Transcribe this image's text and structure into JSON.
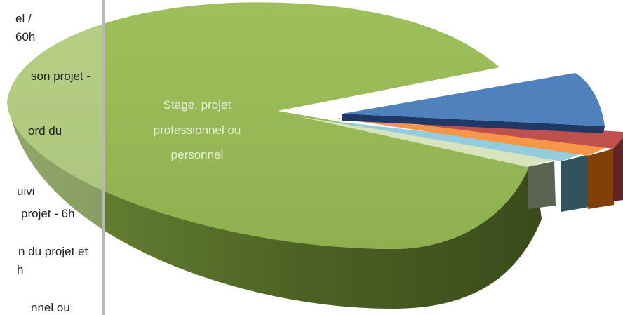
{
  "chart_data": {
    "type": "pie",
    "title": "",
    "categories": [
      "Stage, projet professionnel ou personnel",
      "Blue slice",
      "Red slice",
      "Orange slice",
      "Light-blue slice",
      "Light-green slice"
    ],
    "values": [
      82,
      11,
      1.4,
      1.1,
      1.4,
      1.2
    ],
    "colors": [
      "#9bbb59",
      "#4f81bd",
      "#c0504d",
      "#f79646",
      "#93cddd",
      "#d7e4bd"
    ],
    "side_colors": [
      "#4f6128",
      "#1f3864",
      "#632523",
      "#7f3f06",
      "#31535e",
      "#5d6351"
    ],
    "slice_labels": [
      [
        "Stage, projet",
        "professionnel ou",
        "personnel"
      ]
    ],
    "legend_lines": [
      "el /",
      "60h",
      "son projet -",
      "ord du",
      "uivi",
      "projet - 6h",
      "n du projet et",
      "h",
      "nnel ou"
    ],
    "legend_placement": "left (clipped)",
    "style": "3d-exploded-pie"
  }
}
